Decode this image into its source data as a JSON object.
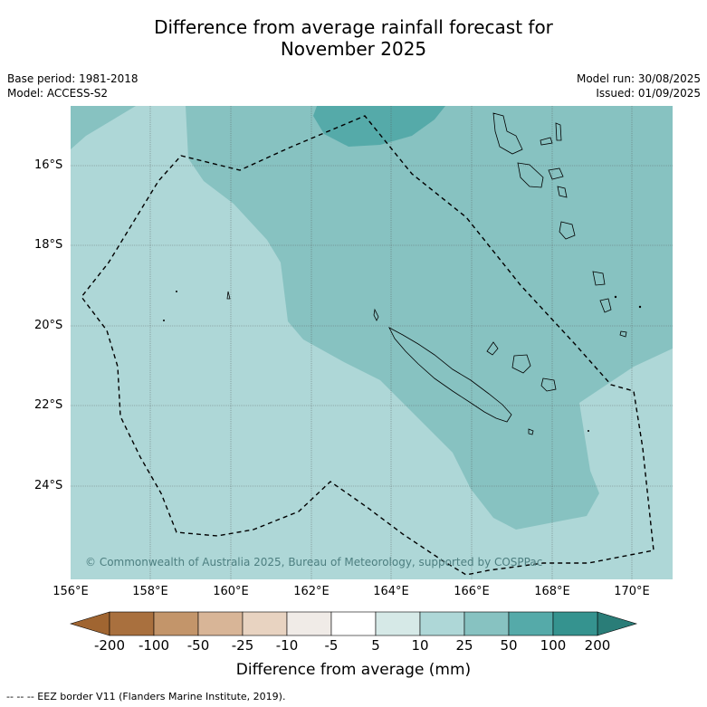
{
  "title": {
    "line1": "Difference from average rainfall forecast for",
    "line2": "November 2025"
  },
  "meta_left": {
    "base_period": "Base period: 1981-2018",
    "model": "Model: ACCESS-S2"
  },
  "meta_right": {
    "model_run": "Model run: 30/08/2025",
    "issued": "Issued: 01/09/2025"
  },
  "axes": {
    "lat_labels": [
      "16°S",
      "18°S",
      "20°S",
      "22°S",
      "24°S"
    ],
    "lon_labels": [
      "156°E",
      "158°E",
      "160°E",
      "162°E",
      "164°E",
      "166°E",
      "168°E",
      "170°E"
    ]
  },
  "copyright": "© Commonwealth of Australia 2025, Bureau of Meteorology, supported by COSPPac",
  "colorbar": {
    "labels": [
      "-200",
      "-100",
      "-50",
      "-25",
      "-10",
      "-5",
      "5",
      "10",
      "25",
      "50",
      "100",
      "200"
    ],
    "colors": [
      "#a9703e",
      "#c3956a",
      "#d8b597",
      "#e8d3c1",
      "#f0ebe7",
      "#ffffff",
      "#d6e9e7",
      "#aed7d7",
      "#87c2c1",
      "#55aaa9",
      "#35938f"
    ],
    "extend_low": "#a06531",
    "extend_high": "#2a7d78",
    "title": "Difference from average (mm)"
  },
  "legend_footer": "--  --  -- EEZ border V11 (Flanders Marine Institute, 2019).",
  "map_colors": {
    "band_10_25": "#aed7d7",
    "band_25_50": "#87c2c1",
    "band_50_100": "#55aaa9"
  }
}
